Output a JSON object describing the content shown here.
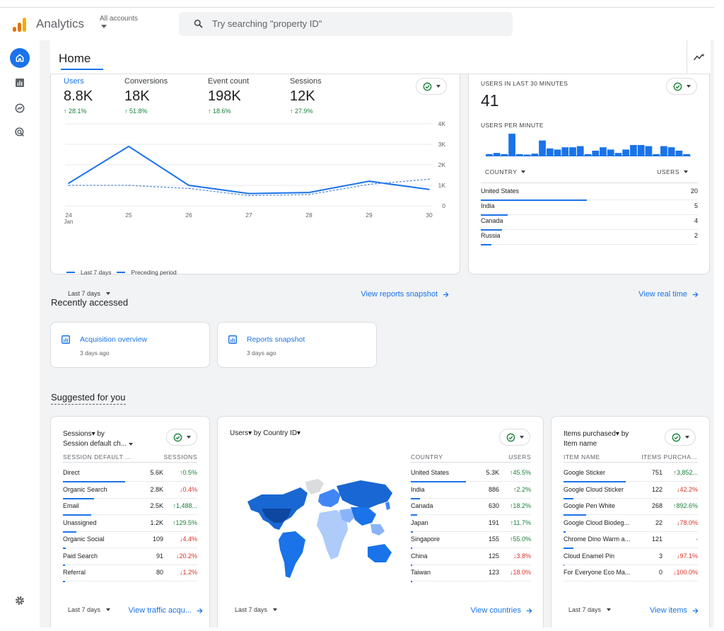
{
  "app": {
    "title": "Analytics",
    "accounts_label": "All accounts"
  },
  "search": {
    "placeholder": "Try searching \"property ID\""
  },
  "page": {
    "title": "Home"
  },
  "overview": {
    "metrics": [
      {
        "label": "Users",
        "value": "8.8K",
        "change": "↑ 28.1%"
      },
      {
        "label": "Conversions",
        "value": "18K",
        "change": "↑ 51.8%"
      },
      {
        "label": "Event count",
        "value": "198K",
        "change": "↑ 18.6%"
      },
      {
        "label": "Sessions",
        "value": "12K",
        "change": "↑ 27.9%"
      }
    ],
    "legend": {
      "current": "Last 7 days",
      "previous": "Preceding period"
    },
    "date_range": "Last 7 days",
    "link": "View reports snapshot",
    "x_sub": "Jan"
  },
  "chart_data": {
    "type": "line",
    "x": [
      "24",
      "25",
      "26",
      "27",
      "28",
      "29",
      "30"
    ],
    "y_ticks": [
      "0",
      "1K",
      "2K",
      "3K",
      "4K"
    ],
    "ylim": [
      0,
      4000
    ],
    "series": [
      {
        "name": "Last 7 days",
        "values": [
          1100,
          2900,
          1000,
          600,
          650,
          1200,
          800
        ]
      },
      {
        "name": "Preceding period",
        "values": [
          1000,
          1000,
          850,
          500,
          550,
          1050,
          1300
        ]
      }
    ]
  },
  "realtime": {
    "title": "USERS IN LAST 30 MINUTES",
    "value": "41",
    "per_minute_label": "USERS PER MINUTE",
    "per_minute_bars": [
      0.1,
      0.15,
      0.1,
      1.0,
      0.1,
      0.08,
      0.12,
      0.7,
      0.35,
      0.3,
      0.4,
      0.4,
      0.45,
      0.1,
      0.25,
      0.4,
      0.3,
      0.15,
      0.3,
      0.5,
      0.5,
      0.45,
      0.1,
      0.45,
      0.4,
      0.25,
      0.1
    ],
    "col_country": "COUNTRY",
    "col_users": "USERS",
    "rows": [
      {
        "name": "United States",
        "value": "20",
        "share": 1.0
      },
      {
        "name": "India",
        "value": "5",
        "share": 0.25
      },
      {
        "name": "Canada",
        "value": "4",
        "share": 0.2
      },
      {
        "name": "Russia",
        "value": "2",
        "share": 0.1
      }
    ],
    "link": "View real time"
  },
  "recent": {
    "title": "Recently accessed",
    "items": [
      {
        "title": "Acquisition overview",
        "time": "3 days ago"
      },
      {
        "title": "Reports snapshot",
        "time": "3 days ago"
      }
    ]
  },
  "suggested": {
    "title": "Suggested for you",
    "sessions": {
      "title_line1": "Sessions▾ by",
      "title_line2": "Session default ch...",
      "col1": "SESSION DEFAULT ...",
      "col2": "SESSIONS",
      "rows": [
        {
          "name": "Direct",
          "value": "5.6K",
          "change": "↑0.5%",
          "dir": "up",
          "share": 1.0
        },
        {
          "name": "Organic Search",
          "value": "2.8K",
          "change": "↓0.4%",
          "dir": "down",
          "share": 0.5
        },
        {
          "name": "Email",
          "value": "2.5K",
          "change": "↑1,488...",
          "dir": "up",
          "share": 0.45
        },
        {
          "name": "Unassigned",
          "value": "1.2K",
          "change": "↑129.5%",
          "dir": "up",
          "share": 0.22
        },
        {
          "name": "Organic Social",
          "value": "109",
          "change": "↓4.4%",
          "dir": "down",
          "share": 0.04
        },
        {
          "name": "Paid Search",
          "value": "91",
          "change": "↓20.2%",
          "dir": "down",
          "share": 0.03
        },
        {
          "name": "Referral",
          "value": "80",
          "change": "↓1.2%",
          "dir": "down",
          "share": 0.03
        }
      ],
      "date_range": "Last 7 days",
      "link": "View traffic acqu..."
    },
    "countries": {
      "title": "Users▾ by Country ID▾",
      "col1": "COUNTRY",
      "col2": "USERS",
      "rows": [
        {
          "name": "United States",
          "value": "5.3K",
          "change": "↑45.5%",
          "dir": "up",
          "share": 1.0
        },
        {
          "name": "India",
          "value": "886",
          "change": "↑2.2%",
          "dir": "up",
          "share": 0.17
        },
        {
          "name": "Canada",
          "value": "630",
          "change": "↑18.2%",
          "dir": "up",
          "share": 0.12
        },
        {
          "name": "Japan",
          "value": "191",
          "change": "↑11.7%",
          "dir": "up",
          "share": 0.04
        },
        {
          "name": "Singapore",
          "value": "155",
          "change": "↑55.0%",
          "dir": "up",
          "share": 0.03
        },
        {
          "name": "China",
          "value": "125",
          "change": "↓3.8%",
          "dir": "down",
          "share": 0.02
        },
        {
          "name": "Taiwan",
          "value": "123",
          "change": "↓18.0%",
          "dir": "down",
          "share": 0.02
        }
      ],
      "date_range": "Last 7 days",
      "link": "View countries"
    },
    "items": {
      "title_line1": "Items purchased▾ by",
      "title_line2": "Item name",
      "col1": "ITEM NAME",
      "col2": "ITEMS PURCHA...",
      "rows": [
        {
          "name": "Google Sticker",
          "value": "751",
          "change": "↑3,852...",
          "dir": "up",
          "share": 1.0
        },
        {
          "name": "Google Cloud Sticker",
          "value": "122",
          "change": "↓42.2%",
          "dir": "down",
          "share": 0.16
        },
        {
          "name": "Google Pen White",
          "value": "268",
          "change": "↑892.6%",
          "dir": "up",
          "share": 0.36
        },
        {
          "name": "Google Cloud Biodeg...",
          "value": "22",
          "change": "↓78.0%",
          "dir": "down",
          "share": 0.03
        },
        {
          "name": "Chrome Dino Warm a...",
          "value": "121",
          "change": "-",
          "dir": "flat",
          "share": 0.16
        },
        {
          "name": "Cloud Enamel Pin",
          "value": "3",
          "change": "↓97.1%",
          "dir": "down",
          "share": 0.01
        },
        {
          "name": "For Everyone Eco Ma...",
          "value": "0",
          "change": "↓100.0%",
          "dir": "down",
          "share": 0
        }
      ],
      "date_range": "Last 7 days",
      "link": "View items"
    }
  },
  "colors": {
    "accent": "#1a73e8",
    "up": "#188038",
    "down": "#d93025",
    "logo": [
      "#f9ab00",
      "#e37400",
      "#e37400"
    ]
  }
}
